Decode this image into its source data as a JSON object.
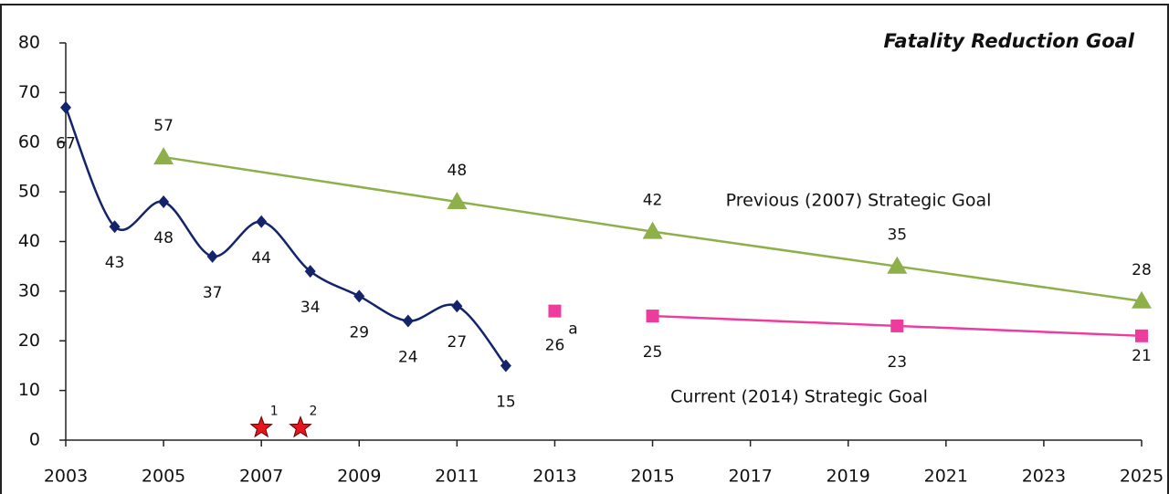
{
  "chart_data": {
    "type": "line",
    "title": "Fatality Reduction Goal",
    "xlim": [
      2003,
      2025
    ],
    "ylim": [
      0,
      80
    ],
    "xticks": [
      2003,
      2005,
      2007,
      2009,
      2011,
      2013,
      2015,
      2017,
      2019,
      2021,
      2023,
      2025
    ],
    "yticks": [
      0,
      10,
      20,
      30,
      40,
      50,
      60,
      70,
      80
    ],
    "series": [
      {
        "color": "#14246b",
        "marker": "diamond",
        "smooth": true,
        "x": [
          2003,
          2004,
          2005,
          2006,
          2007,
          2008,
          2009,
          2010,
          2011,
          2012
        ],
        "values": [
          67,
          43,
          48,
          37,
          44,
          34,
          29,
          24,
          27,
          15
        ]
      },
      {
        "name": "Previous (2007) Strategic Goal",
        "color": "#8db04a",
        "marker": "triangle",
        "x": [
          2005,
          2011,
          2015,
          2020,
          2025
        ],
        "values": [
          57,
          48,
          42,
          35,
          28
        ]
      },
      {
        "name": "Current (2014) Strategic Goal",
        "color": "#ee3c9e",
        "marker": "square",
        "x": [
          2015,
          2020,
          2025
        ],
        "values": [
          25,
          23,
          21
        ]
      }
    ],
    "points": [
      {
        "x": 2013,
        "value": 26,
        "note": "a",
        "color": "#ee3c9e",
        "marker": "square"
      }
    ],
    "stars": [
      {
        "x": 2007,
        "value": 2.5,
        "label": "1",
        "color": "#e8141e"
      },
      {
        "x": 2007.8,
        "value": 2.5,
        "label": "2",
        "color": "#e8141e"
      }
    ]
  }
}
